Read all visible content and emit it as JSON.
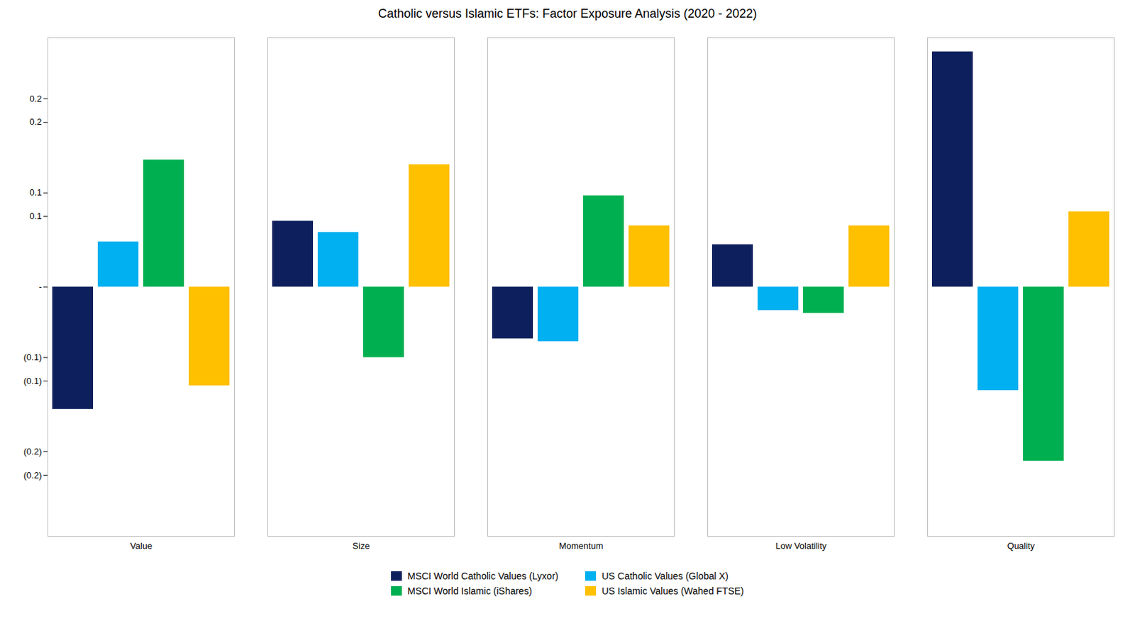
{
  "chart_data": {
    "type": "bar",
    "title": "Catholic versus Islamic ETFs: Factor Exposure Analysis (2020 - 2022)",
    "categories": [
      "Value",
      "Size",
      "Momentum",
      "Low Volatility",
      "Quality"
    ],
    "series": [
      {
        "name": "MSCI World Catholic Values (Lyxor)",
        "color": "#0d1f5c",
        "values": [
          -0.13,
          0.07,
          -0.055,
          0.045,
          0.25
        ]
      },
      {
        "name": "US Catholic Values (Global X)",
        "color": "#00b0f0",
        "values": [
          0.048,
          0.058,
          -0.058,
          -0.025,
          -0.11
        ]
      },
      {
        "name": "MSCI World Islamic (iShares)",
        "color": "#00b050",
        "values": [
          0.135,
          -0.075,
          0.097,
          -0.028,
          -0.185
        ]
      },
      {
        "name": "US Islamic Values (Wahed FTSE)",
        "color": "#ffc000",
        "values": [
          -0.105,
          0.13,
          0.065,
          0.065,
          0.08
        ]
      }
    ],
    "ylim": [
      -0.265,
      0.265
    ],
    "yticks": [
      0.2,
      {
        "value": 0.175,
        "label": "0.2"
      },
      0.1,
      {
        "value": 0.075,
        "label": "0.1"
      },
      {
        "value": 0,
        "label": "-"
      },
      {
        "value": -0.075,
        "label": "(0.1)"
      },
      {
        "value": -0.1,
        "label": "(0.1)"
      },
      {
        "value": -0.175,
        "label": "(0.2)"
      },
      {
        "value": -0.2,
        "label": "(0.2)"
      }
    ],
    "grid": false,
    "legend": "bottom"
  }
}
